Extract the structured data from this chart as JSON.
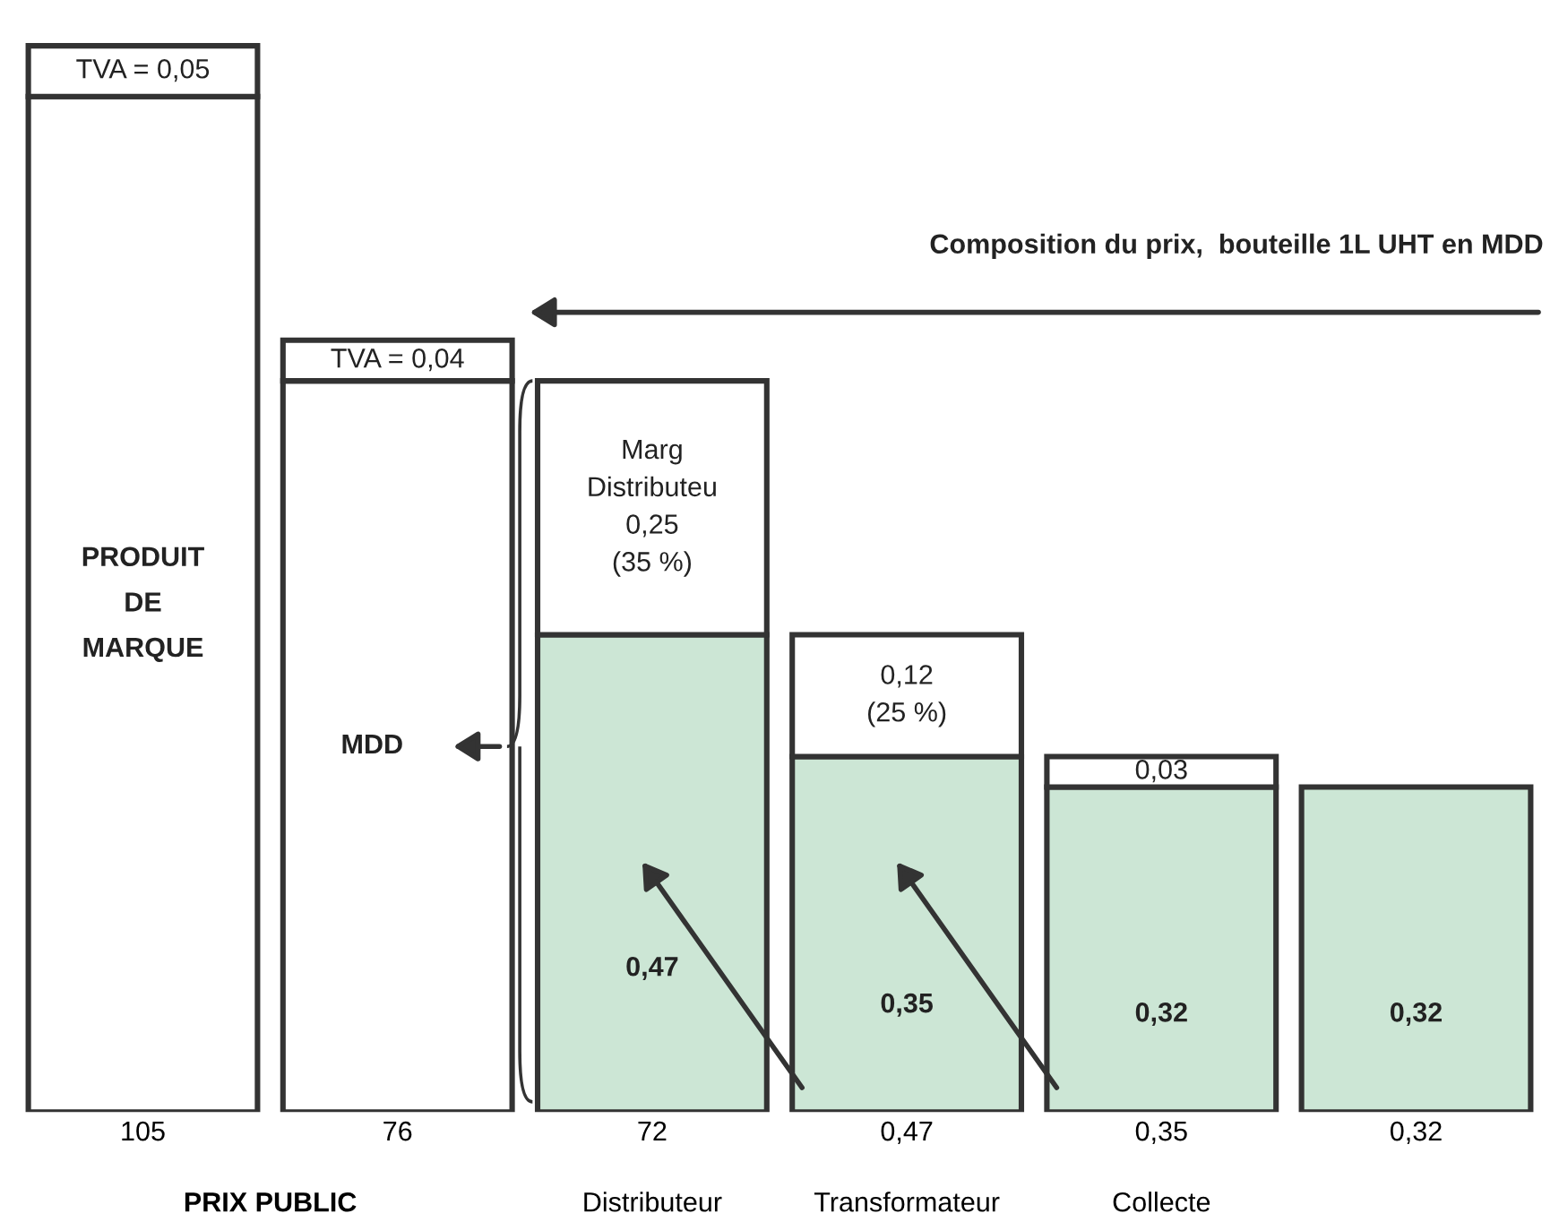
{
  "chart_data": {
    "type": "bar",
    "stacked": true,
    "categories": [
      "105",
      "76",
      "72",
      "0,47",
      "0,35",
      "0,32"
    ],
    "series": [
      {
        "colors": [
          "#ffffff",
          "#ffffff",
          "#cce6d5",
          "#cce6d5",
          "#cce6d5",
          "#cce6d5"
        ],
        "values": [
          1.0,
          0.72,
          0.47,
          0.35,
          0.32,
          0.32
        ],
        "value_labels": [
          "PRODUIT\nDE\nMARQUE",
          "MDD",
          "0,47",
          "0,35",
          "0,32",
          "0,32"
        ]
      },
      {
        "color": "#ffffff",
        "values": [
          0.05,
          0.04,
          0.25,
          0.12,
          0.03,
          null
        ],
        "value_labels": [
          "TVA = 0,05",
          "TVA = 0,04",
          "Marg\nDistributeu\n0,25\n(35 %)",
          "0,12\n(25 %)",
          "0,03",
          null
        ]
      }
    ],
    "annotations": [
      "Composition du prix,  bouteille 1L UHT en MDD",
      "PRIX PUBLIC",
      "Distributeur",
      "Transformateur",
      "Collecte"
    ],
    "grid": false,
    "legend": false
  }
}
